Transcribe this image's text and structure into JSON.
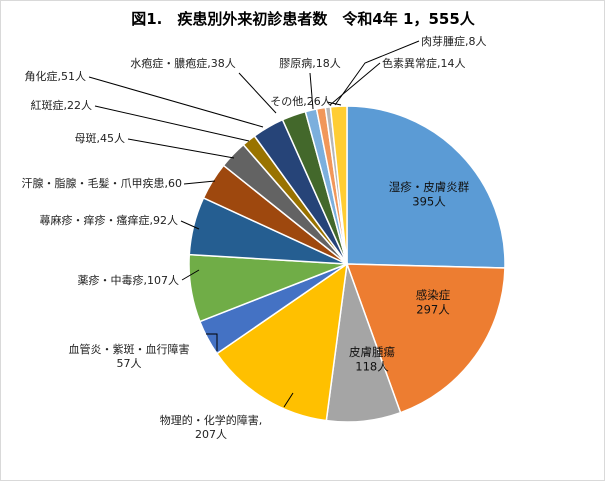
{
  "chart_data": {
    "type": "pie",
    "title": "図1.　疾患別外来初診患者数　令和4年 1，555人",
    "slices": [
      {
        "name": "湿疹・皮膚炎群",
        "value": 395,
        "label": "湿疹・皮膚炎群\n395人",
        "color": "#5B9BD5"
      },
      {
        "name": "感染症",
        "value": 297,
        "label": "感染症\n297人",
        "color": "#ED7D31"
      },
      {
        "name": "皮膚腫瘍",
        "value": 118,
        "label": "皮膚腫瘍\n118人",
        "color": "#A5A5A5"
      },
      {
        "name": "物理的・化学的障害",
        "value": 207,
        "label": "物理的・化学的障害,\n207人",
        "color": "#FFC000"
      },
      {
        "name": "血管炎・紫斑・血行障害",
        "value": 57,
        "label": "血管炎・紫斑・血行障害\n57人",
        "color": "#4472C4"
      },
      {
        "name": "薬疹・中毒疹",
        "value": 107,
        "label": "薬疹・中毒疹,107人",
        "color": "#70AD47"
      },
      {
        "name": "蕁麻疹・痒疹・瘙痒症",
        "value": 92,
        "label": "蕁麻疹・痒疹・瘙痒症,92人",
        "color": "#255E91"
      },
      {
        "name": "汗腺・脂腺・毛髪・爪甲疾患",
        "value": 60,
        "label": "汗腺・脂腺・毛髪・爪甲疾患,60",
        "color": "#9E480E"
      },
      {
        "name": "母斑",
        "value": 45,
        "label": "母斑,45人",
        "color": "#636363"
      },
      {
        "name": "紅斑症",
        "value": 22,
        "label": "紅斑症,22人",
        "color": "#997300"
      },
      {
        "name": "角化症",
        "value": 51,
        "label": "角化症,51人",
        "color": "#264478"
      },
      {
        "name": "水疱症・膿疱症",
        "value": 38,
        "label": "水疱症・膿疱症,38人",
        "color": "#43682B"
      },
      {
        "name": "膠原病",
        "value": 18,
        "label": "膠原病,18人",
        "color": "#7CAFDD"
      },
      {
        "name": "色素異常症",
        "value": 14,
        "label": "色素異常症,14人",
        "color": "#F1975A"
      },
      {
        "name": "肉芽腫症",
        "value": 8,
        "label": "肉芽腫症,8人",
        "color": "#B7B7B7"
      },
      {
        "name": "その他",
        "value": 26,
        "label": "その他,26人",
        "color": "#FFCD33"
      }
    ]
  }
}
